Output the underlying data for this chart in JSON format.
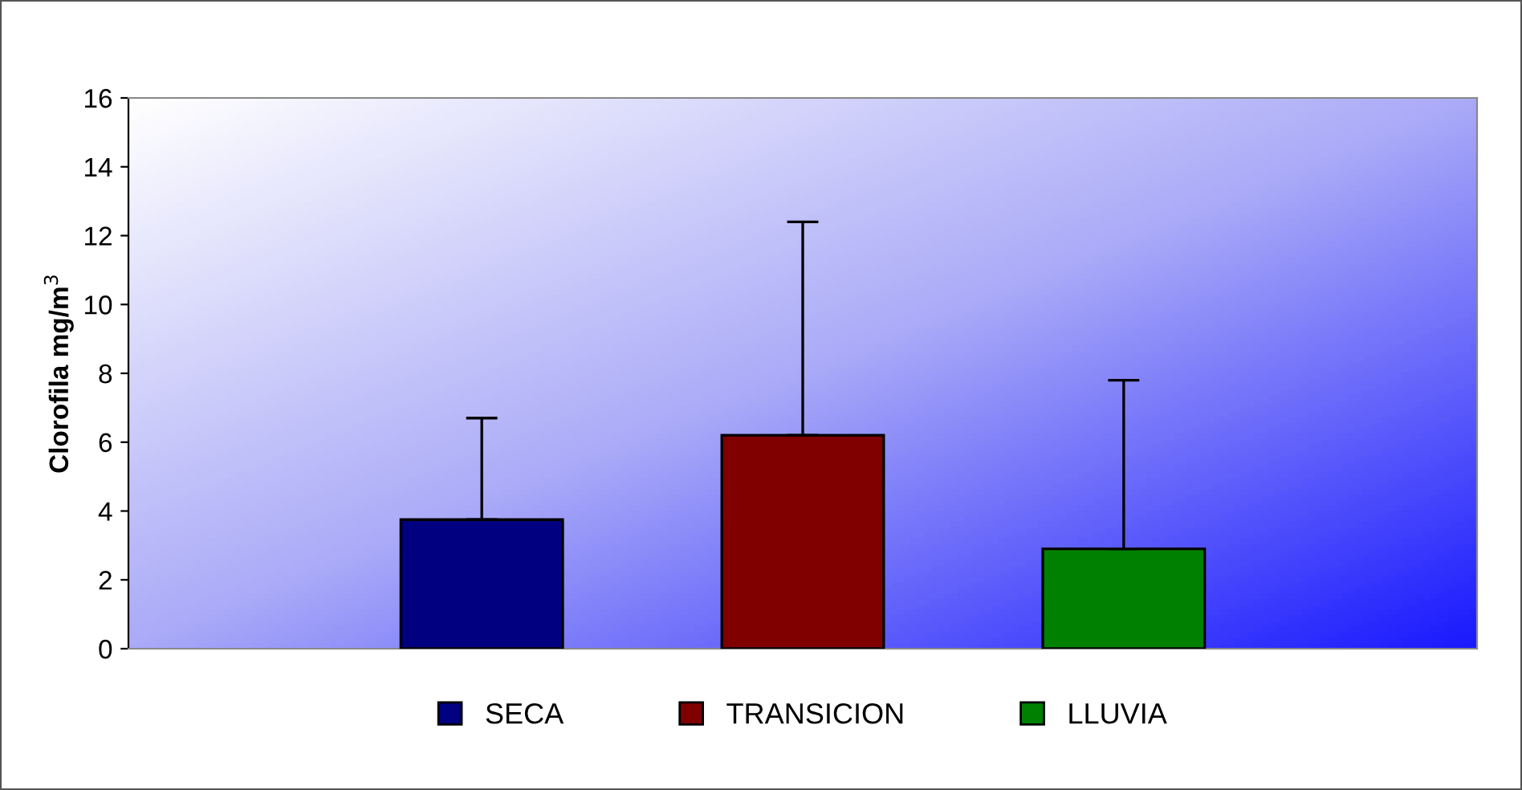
{
  "chart_data": {
    "type": "bar",
    "ylabel": "Clorofila mg/m$^{3}$",
    "categories": [
      null
    ],
    "series": [
      {
        "name": "SECA",
        "color": "#000080",
        "values": [
          3.75
        ],
        "errors": [
          [
            3.75,
            6.7
          ]
        ]
      },
      {
        "name": "TRANSICION",
        "color": "#800000",
        "values": [
          6.2
        ],
        "errors": [
          [
            6.2,
            12.4
          ]
        ]
      },
      {
        "name": "LLUVIA",
        "color": "#008000",
        "values": [
          2.9
        ],
        "errors": [
          [
            2.9,
            7.8
          ]
        ]
      }
    ],
    "ylim": [
      0,
      16
    ],
    "yticks": [
      0,
      2,
      4,
      6,
      8,
      10,
      12,
      14,
      16
    ],
    "grid": false,
    "legend": "bottom"
  }
}
